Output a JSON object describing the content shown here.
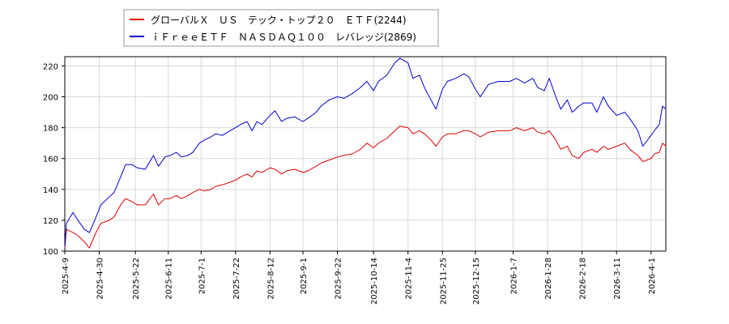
{
  "chart_data": {
    "type": "line",
    "title": "",
    "xlabel": "",
    "ylabel": "",
    "ylim": [
      100,
      226
    ],
    "xlim": [
      "2025-04-09",
      "2026-04-10"
    ],
    "grid": true,
    "legend_position": "top-left",
    "y_ticks": [
      100,
      120,
      140,
      160,
      180,
      200,
      220
    ],
    "x_ticks": [
      "2025-4-9",
      "2025-4-30",
      "2025-5-22",
      "2025-6-11",
      "2025-7-1",
      "2025-7-22",
      "2025-8-12",
      "2025-9-1",
      "2025-9-22",
      "2025-10-14",
      "2025-11-4",
      "2025-11-25",
      "2025-12-15",
      "2026-1-7",
      "2026-1-28",
      "2026-2-18",
      "2026-3-11",
      "2026-4-1"
    ],
    "x_tick_dates": [
      "2025-04-09",
      "2025-04-30",
      "2025-05-22",
      "2025-06-11",
      "2025-07-01",
      "2025-07-22",
      "2025-08-12",
      "2025-09-01",
      "2025-09-22",
      "2025-10-14",
      "2025-11-04",
      "2025-11-25",
      "2025-12-15",
      "2026-01-07",
      "2026-01-28",
      "2026-02-18",
      "2026-03-11",
      "2026-04-01"
    ],
    "series": [
      {
        "name": "グローバルＸ　ＵＳ　テック・トップ２０　ＥＴＦ(2244)",
        "color": "#dd0000",
        "points": [
          [
            "2025-04-09",
            102
          ],
          [
            "2025-04-10",
            114
          ],
          [
            "2025-04-14",
            112
          ],
          [
            "2025-04-17",
            110
          ],
          [
            "2025-04-21",
            106
          ],
          [
            "2025-04-24",
            102
          ],
          [
            "2025-04-28",
            112
          ],
          [
            "2025-05-01",
            118
          ],
          [
            "2025-05-06",
            120
          ],
          [
            "2025-05-09",
            122
          ],
          [
            "2025-05-13",
            130
          ],
          [
            "2025-05-16",
            134
          ],
          [
            "2025-05-20",
            132
          ],
          [
            "2025-05-23",
            130
          ],
          [
            "2025-05-28",
            130
          ],
          [
            "2025-06-02",
            137
          ],
          [
            "2025-06-05",
            130
          ],
          [
            "2025-06-09",
            134
          ],
          [
            "2025-06-12",
            134
          ],
          [
            "2025-06-16",
            136
          ],
          [
            "2025-06-19",
            134
          ],
          [
            "2025-06-23",
            136
          ],
          [
            "2025-06-26",
            138
          ],
          [
            "2025-06-30",
            140
          ],
          [
            "2025-07-03",
            139
          ],
          [
            "2025-07-07",
            140
          ],
          [
            "2025-07-10",
            142
          ],
          [
            "2025-07-14",
            143
          ],
          [
            "2025-07-17",
            144
          ],
          [
            "2025-07-22",
            146
          ],
          [
            "2025-07-25",
            148
          ],
          [
            "2025-07-29",
            150
          ],
          [
            "2025-08-01",
            148
          ],
          [
            "2025-08-04",
            152
          ],
          [
            "2025-08-07",
            151
          ],
          [
            "2025-08-12",
            154
          ],
          [
            "2025-08-15",
            153
          ],
          [
            "2025-08-19",
            150
          ],
          [
            "2025-08-22",
            152
          ],
          [
            "2025-08-27",
            153
          ],
          [
            "2025-09-01",
            151
          ],
          [
            "2025-09-04",
            152
          ],
          [
            "2025-09-09",
            155
          ],
          [
            "2025-09-12",
            157
          ],
          [
            "2025-09-17",
            159
          ],
          [
            "2025-09-22",
            161
          ],
          [
            "2025-09-26",
            162
          ],
          [
            "2025-10-01",
            163
          ],
          [
            "2025-10-06",
            166
          ],
          [
            "2025-10-10",
            170
          ],
          [
            "2025-10-14",
            167
          ],
          [
            "2025-10-17",
            170
          ],
          [
            "2025-10-22",
            173
          ],
          [
            "2025-10-27",
            178
          ],
          [
            "2025-10-30",
            181
          ],
          [
            "2025-11-04",
            180
          ],
          [
            "2025-11-07",
            176
          ],
          [
            "2025-11-11",
            178
          ],
          [
            "2025-11-14",
            176
          ],
          [
            "2025-11-18",
            172
          ],
          [
            "2025-11-21",
            168
          ],
          [
            "2025-11-25",
            174
          ],
          [
            "2025-11-28",
            176
          ],
          [
            "2025-12-03",
            176
          ],
          [
            "2025-12-08",
            178
          ],
          [
            "2025-12-11",
            178
          ],
          [
            "2025-12-15",
            176
          ],
          [
            "2025-12-18",
            174
          ],
          [
            "2025-12-23",
            177
          ],
          [
            "2025-12-29",
            178
          ],
          [
            "2026-01-05",
            178
          ],
          [
            "2026-01-09",
            180
          ],
          [
            "2026-01-14",
            178
          ],
          [
            "2026-01-19",
            180
          ],
          [
            "2026-01-22",
            177
          ],
          [
            "2026-01-26",
            176
          ],
          [
            "2026-01-29",
            178
          ],
          [
            "2026-02-02",
            172
          ],
          [
            "2026-02-05",
            166
          ],
          [
            "2026-02-09",
            168
          ],
          [
            "2026-02-12",
            162
          ],
          [
            "2026-02-16",
            160
          ],
          [
            "2026-02-19",
            164
          ],
          [
            "2026-02-24",
            166
          ],
          [
            "2026-02-27",
            164
          ],
          [
            "2026-03-03",
            168
          ],
          [
            "2026-03-06",
            166
          ],
          [
            "2026-03-11",
            168
          ],
          [
            "2026-03-16",
            170
          ],
          [
            "2026-03-19",
            166
          ],
          [
            "2026-03-24",
            162
          ],
          [
            "2026-03-27",
            158
          ],
          [
            "2026-04-01",
            160
          ],
          [
            "2026-04-03",
            163
          ],
          [
            "2026-04-06",
            164
          ],
          [
            "2026-04-08",
            170
          ],
          [
            "2026-04-10",
            168
          ]
        ]
      },
      {
        "name": "ｉＦｒｅｅＥＴＦ　ＮＡＳＤＡＱ１００　レバレッジ(2869)",
        "color": "#0000cc",
        "points": [
          [
            "2025-04-09",
            103
          ],
          [
            "2025-04-10",
            118
          ],
          [
            "2025-04-14",
            125
          ],
          [
            "2025-04-17",
            120
          ],
          [
            "2025-04-21",
            114
          ],
          [
            "2025-04-24",
            112
          ],
          [
            "2025-04-28",
            122
          ],
          [
            "2025-05-01",
            130
          ],
          [
            "2025-05-06",
            135
          ],
          [
            "2025-05-09",
            138
          ],
          [
            "2025-05-13",
            148
          ],
          [
            "2025-05-16",
            156
          ],
          [
            "2025-05-20",
            156
          ],
          [
            "2025-05-23",
            154
          ],
          [
            "2025-05-28",
            153
          ],
          [
            "2025-06-02",
            162
          ],
          [
            "2025-06-05",
            155
          ],
          [
            "2025-06-09",
            161
          ],
          [
            "2025-06-12",
            162
          ],
          [
            "2025-06-16",
            164
          ],
          [
            "2025-06-19",
            161
          ],
          [
            "2025-06-23",
            162
          ],
          [
            "2025-06-26",
            164
          ],
          [
            "2025-06-30",
            170
          ],
          [
            "2025-07-03",
            172
          ],
          [
            "2025-07-07",
            174
          ],
          [
            "2025-07-10",
            176
          ],
          [
            "2025-07-14",
            175
          ],
          [
            "2025-07-17",
            177
          ],
          [
            "2025-07-22",
            180
          ],
          [
            "2025-07-25",
            182
          ],
          [
            "2025-07-29",
            184
          ],
          [
            "2025-08-01",
            178
          ],
          [
            "2025-08-04",
            184
          ],
          [
            "2025-08-07",
            182
          ],
          [
            "2025-08-12",
            188
          ],
          [
            "2025-08-15",
            191
          ],
          [
            "2025-08-19",
            184
          ],
          [
            "2025-08-22",
            186
          ],
          [
            "2025-08-27",
            187
          ],
          [
            "2025-09-01",
            184
          ],
          [
            "2025-09-04",
            186
          ],
          [
            "2025-09-09",
            190
          ],
          [
            "2025-09-12",
            194
          ],
          [
            "2025-09-17",
            198
          ],
          [
            "2025-09-22",
            200
          ],
          [
            "2025-09-26",
            199
          ],
          [
            "2025-10-01",
            202
          ],
          [
            "2025-10-06",
            206
          ],
          [
            "2025-10-10",
            210
          ],
          [
            "2025-10-14",
            204
          ],
          [
            "2025-10-17",
            210
          ],
          [
            "2025-10-22",
            214
          ],
          [
            "2025-10-27",
            222
          ],
          [
            "2025-10-30",
            225
          ],
          [
            "2025-11-04",
            222
          ],
          [
            "2025-11-07",
            212
          ],
          [
            "2025-11-11",
            214
          ],
          [
            "2025-11-14",
            206
          ],
          [
            "2025-11-18",
            198
          ],
          [
            "2025-11-21",
            192
          ],
          [
            "2025-11-25",
            205
          ],
          [
            "2025-11-28",
            210
          ],
          [
            "2025-12-03",
            212
          ],
          [
            "2025-12-08",
            215
          ],
          [
            "2025-12-11",
            213
          ],
          [
            "2025-12-15",
            205
          ],
          [
            "2025-12-18",
            200
          ],
          [
            "2025-12-23",
            208
          ],
          [
            "2025-12-29",
            210
          ],
          [
            "2026-01-05",
            210
          ],
          [
            "2026-01-09",
            212
          ],
          [
            "2026-01-14",
            209
          ],
          [
            "2026-01-19",
            212
          ],
          [
            "2026-01-22",
            206
          ],
          [
            "2026-01-26",
            204
          ],
          [
            "2026-01-29",
            212
          ],
          [
            "2026-02-02",
            200
          ],
          [
            "2026-02-05",
            192
          ],
          [
            "2026-02-09",
            198
          ],
          [
            "2026-02-12",
            190
          ],
          [
            "2026-02-16",
            194
          ],
          [
            "2026-02-19",
            196
          ],
          [
            "2026-02-24",
            196
          ],
          [
            "2026-02-27",
            190
          ],
          [
            "2026-03-03",
            200
          ],
          [
            "2026-03-06",
            194
          ],
          [
            "2026-03-11",
            188
          ],
          [
            "2026-03-16",
            190
          ],
          [
            "2026-03-19",
            186
          ],
          [
            "2026-03-24",
            178
          ],
          [
            "2026-03-27",
            168
          ],
          [
            "2026-04-01",
            175
          ],
          [
            "2026-04-03",
            178
          ],
          [
            "2026-04-06",
            182
          ],
          [
            "2026-04-08",
            194
          ],
          [
            "2026-04-10",
            192
          ]
        ]
      }
    ]
  }
}
